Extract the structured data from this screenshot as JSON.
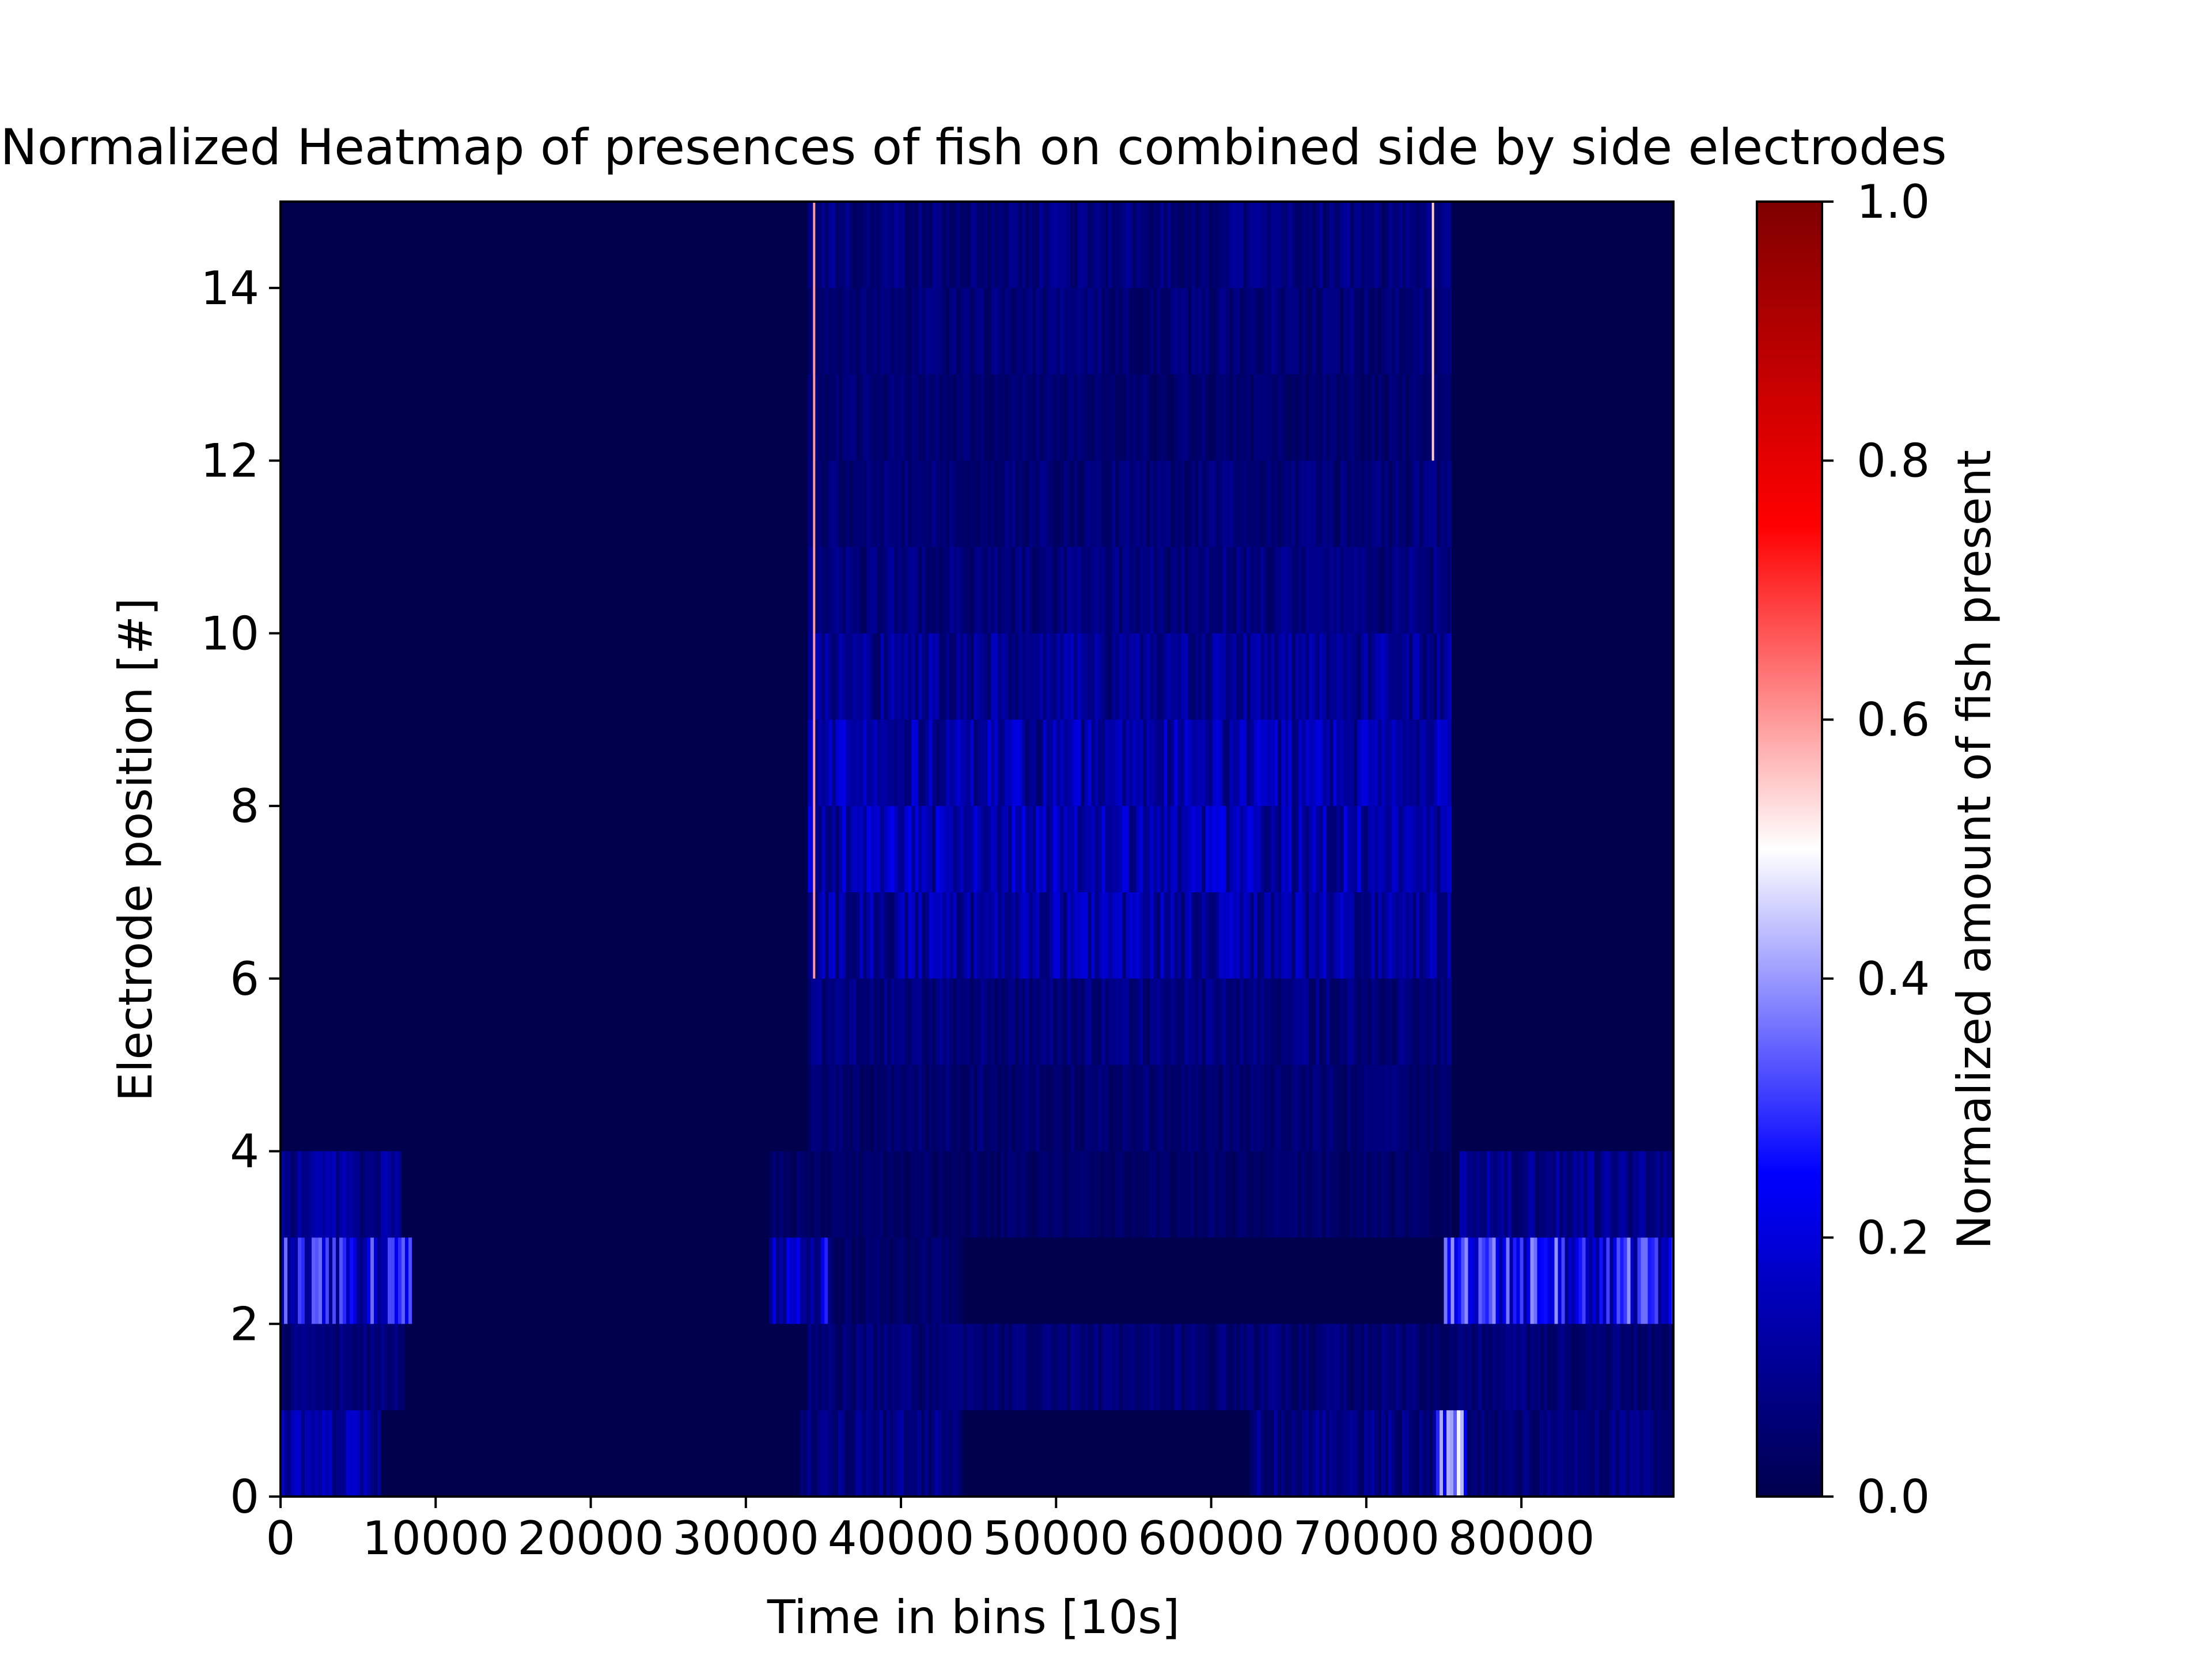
{
  "chart_data": {
    "type": "heatmap",
    "title": "Normalized Heatmap of presences of fish on combined side by side electrodes",
    "xlabel": "Time in bins [10s]",
    "ylabel": "Electrode position [#]",
    "xlim": [
      0,
      89800
    ],
    "ylim": [
      0,
      15
    ],
    "xticks": [
      "0",
      "10000",
      "20000",
      "30000",
      "40000",
      "50000",
      "60000",
      "70000",
      "80000"
    ],
    "yticks": [
      "0",
      "2",
      "4",
      "6",
      "8",
      "10",
      "12",
      "14"
    ],
    "colorbar": {
      "label": "Normalized amount of fish present",
      "range": [
        0.0,
        1.0
      ],
      "ticks": [
        "0.0",
        "0.2",
        "0.4",
        "0.6",
        "0.8",
        "1.0"
      ],
      "colormap": "seismic",
      "colors": [
        "#00004c",
        "#0000ff",
        "#ffffff",
        "#ff0000",
        "#7f0000"
      ]
    },
    "rows": [
      {
        "row": 0,
        "segments": [
          {
            "x": [
              0,
              6500
            ],
            "value": 0.12
          },
          {
            "x": [
              33500,
              44000
            ],
            "value": 0.08
          },
          {
            "x": [
              62500,
              74500
            ],
            "value": 0.08
          },
          {
            "x": [
              74500,
              76500
            ],
            "value": 0.35
          },
          {
            "x": [
              76500,
              89800
            ],
            "value": 0.07
          }
        ]
      },
      {
        "row": 1,
        "segments": [
          {
            "x": [
              0,
              8000
            ],
            "value": 0.06
          },
          {
            "x": [
              34000,
              75000
            ],
            "value": 0.06
          },
          {
            "x": [
              75000,
              89800
            ],
            "value": 0.06
          }
        ]
      },
      {
        "row": 2,
        "segments": [
          {
            "x": [
              0,
              8500
            ],
            "value": 0.22
          },
          {
            "x": [
              31500,
              35500
            ],
            "value": 0.18
          },
          {
            "x": [
              35500,
              44000
            ],
            "value": 0.04
          },
          {
            "x": [
              75000,
              89800
            ],
            "value": 0.24
          }
        ]
      },
      {
        "row": 3,
        "segments": [
          {
            "x": [
              0,
              7800
            ],
            "value": 0.1
          },
          {
            "x": [
              31500,
              75500
            ],
            "value": 0.04
          },
          {
            "x": [
              76000,
              89800
            ],
            "value": 0.09
          }
        ]
      },
      {
        "row": 4,
        "segments": [
          {
            "x": [
              34000,
              75500
            ],
            "value": 0.05
          }
        ]
      },
      {
        "row": 5,
        "segments": [
          {
            "x": [
              34000,
              75500
            ],
            "value": 0.07
          }
        ]
      },
      {
        "row": 6,
        "segments": [
          {
            "x": [
              34000,
              75500
            ],
            "value": 0.12
          }
        ]
      },
      {
        "row": 7,
        "segments": [
          {
            "x": [
              34000,
              75500
            ],
            "value": 0.14
          }
        ]
      },
      {
        "row": 8,
        "segments": [
          {
            "x": [
              34000,
              75500
            ],
            "value": 0.13
          }
        ]
      },
      {
        "row": 9,
        "segments": [
          {
            "x": [
              34000,
              75500
            ],
            "value": 0.1
          }
        ]
      },
      {
        "row": 10,
        "segments": [
          {
            "x": [
              34000,
              75500
            ],
            "value": 0.07
          }
        ]
      },
      {
        "row": 11,
        "segments": [
          {
            "x": [
              34000,
              75500
            ],
            "value": 0.06
          }
        ]
      },
      {
        "row": 12,
        "segments": [
          {
            "x": [
              34000,
              75500
            ],
            "value": 0.05
          }
        ]
      },
      {
        "row": 13,
        "segments": [
          {
            "x": [
              34000,
              75500
            ],
            "value": 0.06
          }
        ]
      },
      {
        "row": 14,
        "segments": [
          {
            "x": [
              34000,
              75500
            ],
            "value": 0.07
          }
        ]
      }
    ],
    "bright_columns": [
      {
        "x": 34400,
        "rows": [
          6,
          15
        ],
        "value": 0.6
      },
      {
        "x": 74300,
        "rows": [
          12,
          15
        ],
        "value": 0.55
      }
    ]
  }
}
